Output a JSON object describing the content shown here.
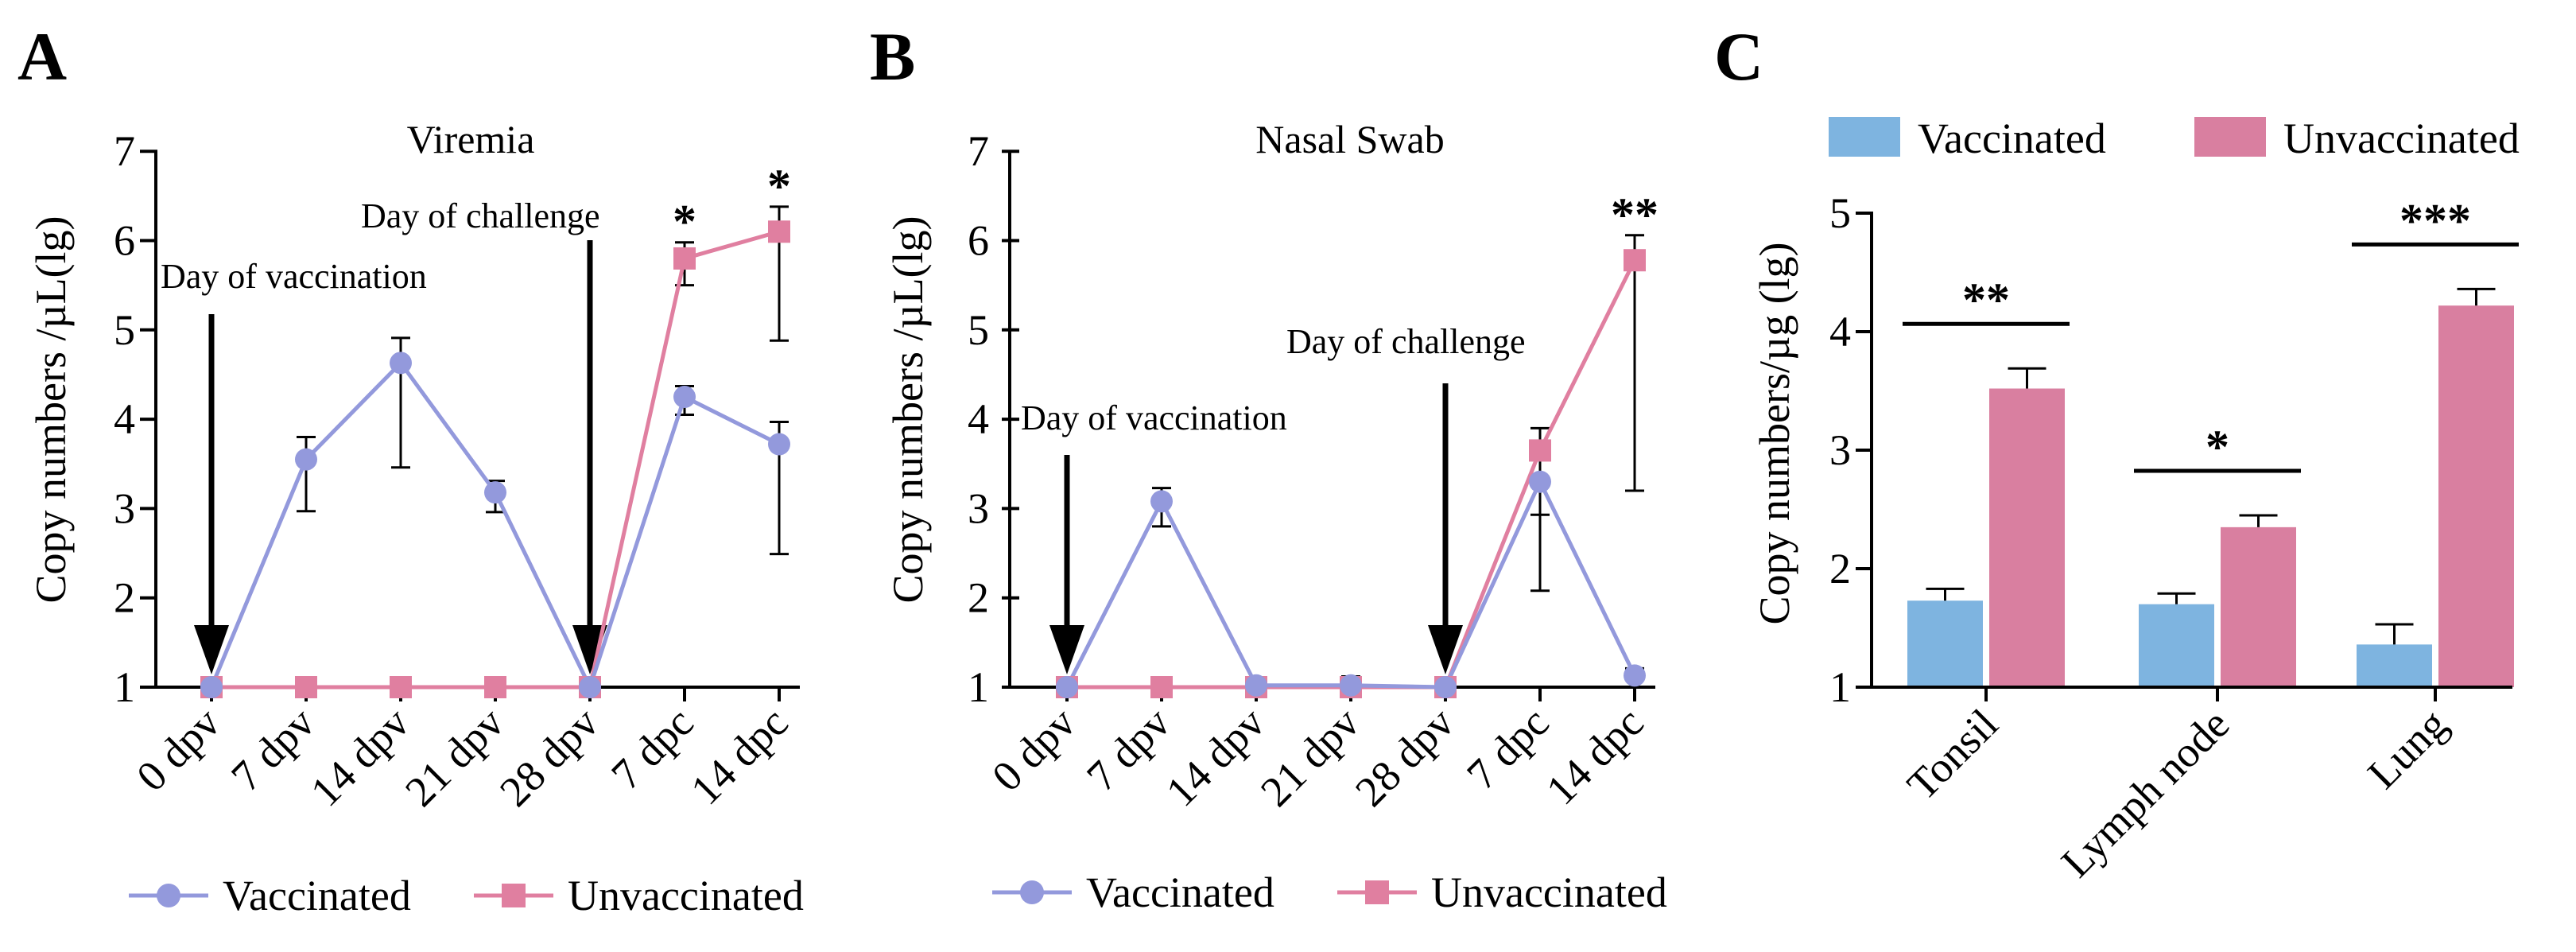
{
  "panel_labels": [
    "A",
    "B",
    "C"
  ],
  "colors": {
    "vaccinated_line": "#9399dc",
    "unvaccinated_line": "#e07fa0",
    "vaccinated_bar": "#7eb4e0",
    "unvaccinated_bar": "#d97fa0"
  },
  "chart_data": [
    {
      "panel": "A",
      "type": "line",
      "title": "Viremia",
      "ylabel": "Copy numbers /µL(lg)",
      "ylim": [
        1,
        7
      ],
      "yticks": [
        1,
        2,
        3,
        4,
        5,
        6,
        7
      ],
      "categories": [
        "0 dpv",
        "7 dpv",
        "14 dpv",
        "21 dpv",
        "28 dpv",
        "7 dpc",
        "14 dpc"
      ],
      "series": [
        {
          "name": "Vaccinated",
          "marker": "circle",
          "values": [
            1,
            3.55,
            4.63,
            3.18,
            1,
            4.25,
            3.72
          ],
          "err": [
            0,
            0.25,
            0.28,
            0.13,
            0,
            0.12,
            0.25
          ],
          "err_low": [
            0,
            0.58,
            1.17,
            0.22,
            0,
            0.2,
            1.23
          ]
        },
        {
          "name": "Unvaccinated",
          "marker": "square",
          "values": [
            1,
            1,
            1,
            1,
            1,
            5.8,
            6.1
          ],
          "err": [
            0,
            0,
            0,
            0,
            0,
            0.18,
            0.28
          ],
          "err_low": [
            0,
            0,
            0,
            0,
            0,
            0.3,
            1.22
          ]
        }
      ],
      "annotations": [
        {
          "text": "Day of vaccination",
          "at_index": 0
        },
        {
          "text": "Day of challenge",
          "at_index": 4
        }
      ],
      "significance": [
        {
          "index": 5,
          "label": "*"
        },
        {
          "index": 6,
          "label": "*"
        }
      ],
      "legend": [
        "Vaccinated",
        "Unvaccinated"
      ],
      "legend_position": "bottom"
    },
    {
      "panel": "B",
      "type": "line",
      "title": "Nasal Swab",
      "ylabel": "Copy numbers /µL(lg)",
      "ylim": [
        1,
        7
      ],
      "yticks": [
        1,
        2,
        3,
        4,
        5,
        6,
        7
      ],
      "categories": [
        "0 dpv",
        "7 dpv",
        "14 dpv",
        "21 dpv",
        "28 dpv",
        "7 dpc",
        "14 dpc"
      ],
      "series": [
        {
          "name": "Vaccinated",
          "marker": "circle",
          "values": [
            1,
            3.08,
            1.02,
            1.02,
            1,
            3.3,
            1.13
          ],
          "err": [
            0,
            0.15,
            0.02,
            0.1,
            0,
            0.3,
            0.08
          ],
          "err_low": [
            0,
            0.28,
            0.02,
            0.02,
            0,
            1.22,
            0.05
          ]
        },
        {
          "name": "Unvaccinated",
          "marker": "square",
          "values": [
            1,
            1,
            1,
            1,
            1,
            3.65,
            5.78
          ],
          "err": [
            0,
            0,
            0,
            0,
            0,
            0.25,
            0.28
          ],
          "err_low": [
            0,
            0,
            0,
            0,
            0,
            0.72,
            2.58
          ]
        }
      ],
      "annotations": [
        {
          "text": "Day of vaccination",
          "at_index": 0
        },
        {
          "text": "Day of challenge",
          "at_index": 4
        }
      ],
      "significance": [
        {
          "index": 6,
          "label": "**"
        }
      ],
      "legend": [
        "Vaccinated",
        "Unvaccinated"
      ],
      "legend_position": "bottom"
    },
    {
      "panel": "C",
      "type": "bar",
      "ylabel": "Copy numbers/µg (lg)",
      "ylim": [
        1,
        5
      ],
      "yticks": [
        1,
        2,
        3,
        4,
        5
      ],
      "categories": [
        "Tonsil",
        "Lymph node",
        "Lung"
      ],
      "series": [
        {
          "name": "Vaccinated",
          "values": [
            1.73,
            1.7,
            1.36
          ],
          "err": [
            0.1,
            0.09,
            0.17
          ]
        },
        {
          "name": "Unvaccinated",
          "values": [
            3.52,
            2.35,
            4.22
          ],
          "err": [
            0.17,
            0.1,
            0.14
          ]
        }
      ],
      "significance": [
        {
          "index": 0,
          "label": "**"
        },
        {
          "index": 1,
          "label": "*"
        },
        {
          "index": 2,
          "label": "***"
        }
      ],
      "legend": [
        "Vaccinated",
        "Unvaccinated"
      ],
      "legend_position": "top"
    }
  ]
}
